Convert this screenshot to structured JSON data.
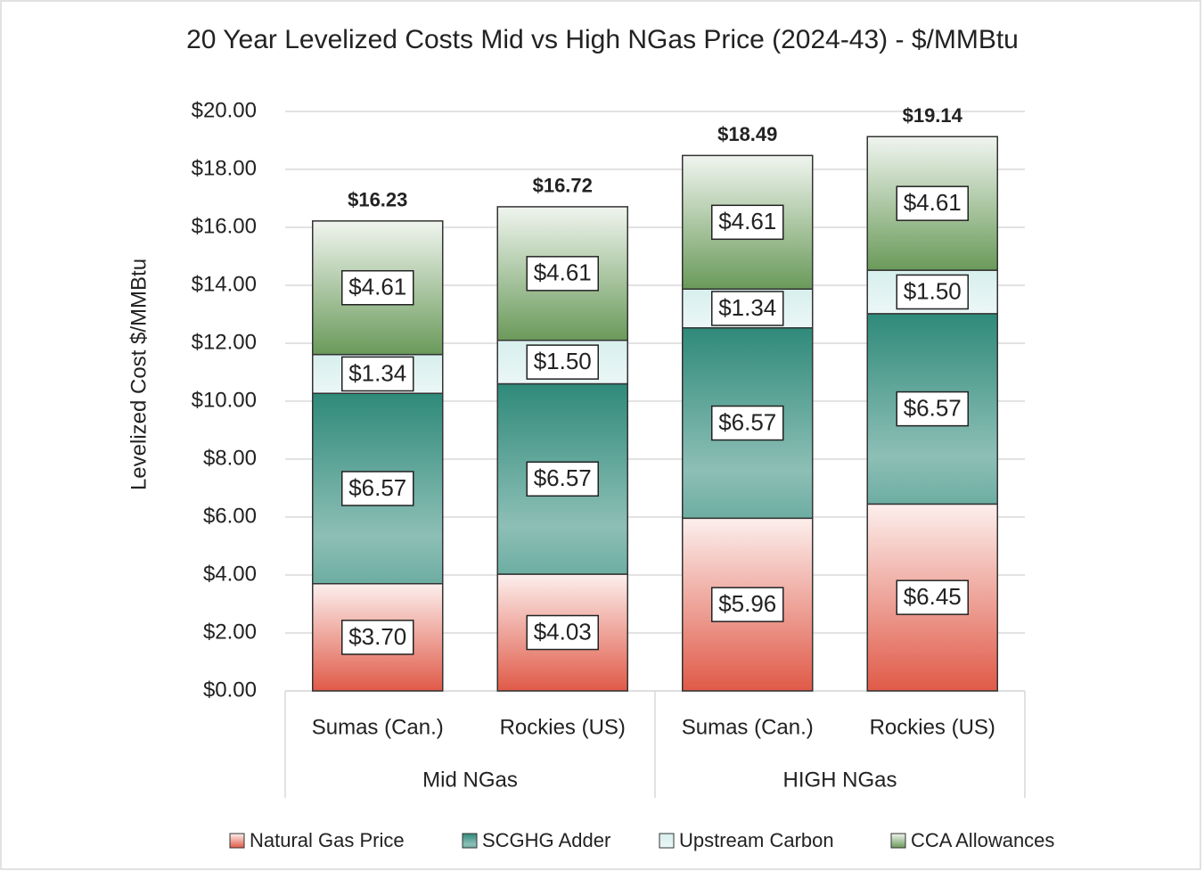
{
  "chart_data": {
    "type": "stacked-bar",
    "title": "20 Year Levelized Costs Mid vs High NGas Price (2024-43) - $/MMBtu",
    "y_label": "Levelized Cost $/MMBtu",
    "categories": [
      "Sumas (Can.)",
      "Rockies (US)",
      "Sumas (Can.)",
      "Rockies (US)"
    ],
    "groups": [
      "Mid NGas",
      "HIGH NGas"
    ],
    "series": [
      {
        "name": "Natural Gas Price",
        "color": "#e05a48",
        "values": [
          3.7,
          4.03,
          5.96,
          6.45
        ],
        "value_labels": [
          "$3.70",
          "$4.03",
          "$5.96",
          "$6.45"
        ]
      },
      {
        "name": "SCGHG Adder",
        "color": "#2f8a7a",
        "values": [
          6.57,
          6.57,
          6.57,
          6.57
        ],
        "value_labels": [
          "$6.57",
          "$6.57",
          "$6.57",
          "$6.57"
        ]
      },
      {
        "name": "Upstream Carbon",
        "color": "#cdebe8",
        "values": [
          1.34,
          1.5,
          1.34,
          1.5
        ],
        "value_labels": [
          "$1.34",
          "$1.50",
          "$1.34",
          "$1.50"
        ]
      },
      {
        "name": "CCA Allowances",
        "color": "#6a9a5a",
        "values": [
          4.61,
          4.61,
          4.61,
          4.61
        ],
        "value_labels": [
          "$4.61",
          "$4.61",
          "$4.61",
          "$4.61"
        ]
      }
    ],
    "totals": [
      16.23,
      16.72,
      18.49,
      19.14
    ],
    "total_labels": [
      "$16.23",
      "$16.72",
      "$18.49",
      "$19.14"
    ],
    "ylim": [
      0,
      20
    ],
    "yticks": [
      {
        "value": 0,
        "label": "$0.00"
      },
      {
        "value": 2,
        "label": "$2.00"
      },
      {
        "value": 4,
        "label": "$4.00"
      },
      {
        "value": 6,
        "label": "$6.00"
      },
      {
        "value": 8,
        "label": "$8.00"
      },
      {
        "value": 10,
        "label": "$10.00"
      },
      {
        "value": 12,
        "label": "$12.00"
      },
      {
        "value": 14,
        "label": "$14.00"
      },
      {
        "value": 16,
        "label": "$16.00"
      },
      {
        "value": 18,
        "label": "$18.00"
      },
      {
        "value": 20,
        "label": "$20.00"
      }
    ],
    "grid": true
  }
}
